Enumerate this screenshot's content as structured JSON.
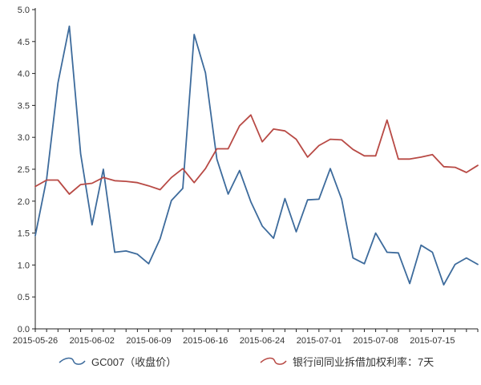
{
  "chart_data": {
    "type": "line",
    "title": "",
    "xlabel": "",
    "ylabel": "",
    "ylim": [
      0,
      5
    ],
    "y_ticks": [
      "0.0",
      "0.5",
      "1.0",
      "1.5",
      "2.0",
      "2.5",
      "3.0",
      "3.5",
      "4.0",
      "4.5",
      "5.0"
    ],
    "x_ticks": [
      "2015-05-26",
      "2015-06-02",
      "2015-06-09",
      "2015-06-16",
      "2015-06-24",
      "2015-07-01",
      "2015-07-08",
      "2015-07-15"
    ],
    "grid": false,
    "legend_position": "bottom",
    "series": [
      {
        "name": "GC007（收盘价）",
        "color": "#3d6b9c",
        "values": [
          1.46,
          2.35,
          3.85,
          4.74,
          2.74,
          1.63,
          2.5,
          1.2,
          1.22,
          1.17,
          1.02,
          1.41,
          2.01,
          2.2,
          4.61,
          4.01,
          2.66,
          2.11,
          2.48,
          1.99,
          1.61,
          1.42,
          2.04,
          1.52,
          2.02,
          2.03,
          2.51,
          2.03,
          1.11,
          1.02,
          1.5,
          1.2,
          1.19,
          0.71,
          1.31,
          1.2,
          0.69,
          1.01,
          1.11,
          1.01
        ]
      },
      {
        "name": "银行间同业拆借加权利率：7天",
        "color": "#b84a45",
        "values": [
          2.23,
          2.33,
          2.33,
          2.11,
          2.26,
          2.28,
          2.37,
          2.32,
          2.31,
          2.29,
          2.24,
          2.18,
          2.37,
          2.51,
          2.29,
          2.51,
          2.82,
          2.82,
          3.18,
          3.35,
          2.93,
          3.13,
          3.1,
          2.97,
          2.69,
          2.87,
          2.97,
          2.96,
          2.81,
          2.71,
          2.71,
          3.27,
          2.66,
          2.66,
          2.69,
          2.73,
          2.54,
          2.53,
          2.45,
          2.56
        ]
      }
    ]
  }
}
